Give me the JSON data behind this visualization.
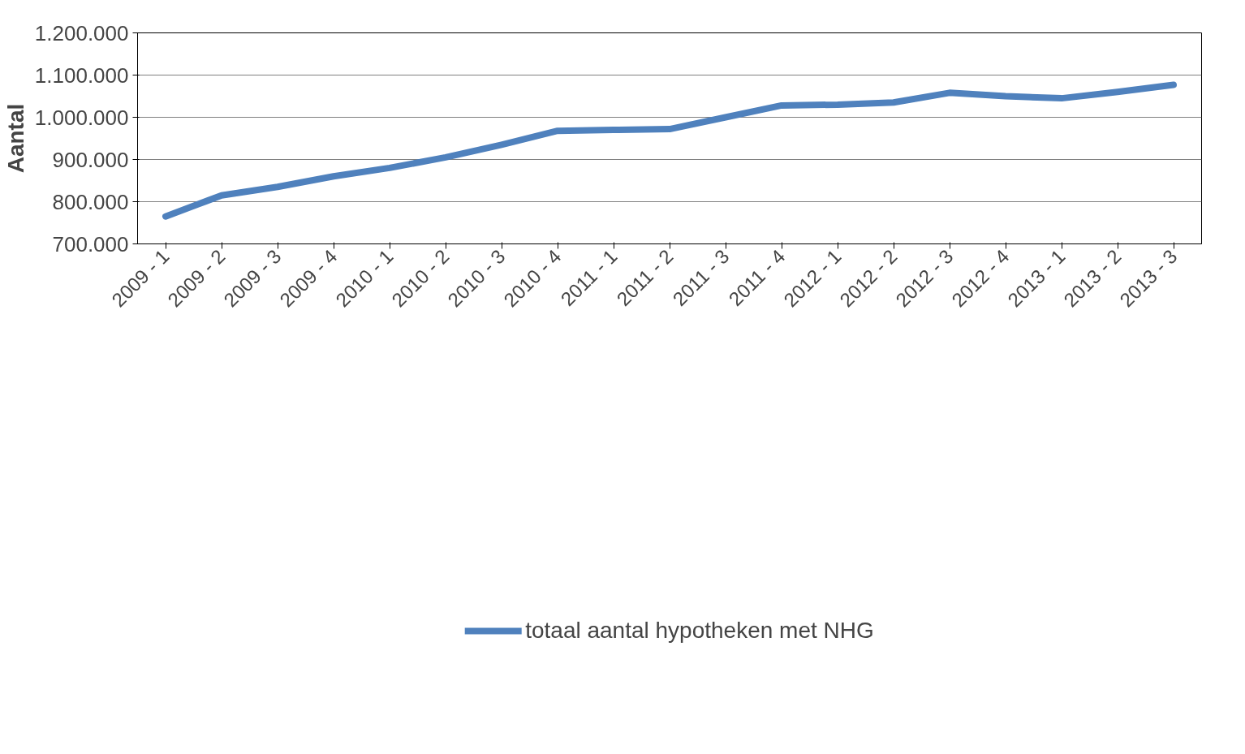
{
  "chart_data": {
    "type": "line",
    "ylabel": "Aantal",
    "categories": [
      "2009 - 1",
      "2009 - 2",
      "2009 - 3",
      "2009 - 4",
      "2010 - 1",
      "2010 - 2",
      "2010 - 3",
      "2010 - 4",
      "2011 - 1",
      "2011 - 2",
      "2011 - 3",
      "2011 - 4",
      "2012 - 1",
      "2012 - 2",
      "2012 - 3",
      "2012 - 4",
      "2013 - 1",
      "2013 - 2",
      "2013 - 3"
    ],
    "series": [
      {
        "name": "totaal aantal hypotheken met NHG",
        "color": "#4f81bd",
        "values": [
          765000,
          815000,
          835000,
          860000,
          880000,
          905000,
          935000,
          968000,
          970000,
          972000,
          1000000,
          1028000,
          1030000,
          1035000,
          1058000,
          1050000,
          1045000,
          1060000,
          1077000
        ]
      }
    ],
    "ylim": [
      700000,
      1200000
    ],
    "yticks": [
      {
        "value": 700000,
        "label": "700.000"
      },
      {
        "value": 800000,
        "label": "800.000"
      },
      {
        "value": 900000,
        "label": "900.000"
      },
      {
        "value": 1000000,
        "label": "1.000.000"
      },
      {
        "value": 1100000,
        "label": "1.100.000"
      },
      {
        "value": 1200000,
        "label": "1.200.000"
      }
    ],
    "grid": "y",
    "legend": "bottom",
    "marker": "none",
    "line_style": "solid"
  }
}
